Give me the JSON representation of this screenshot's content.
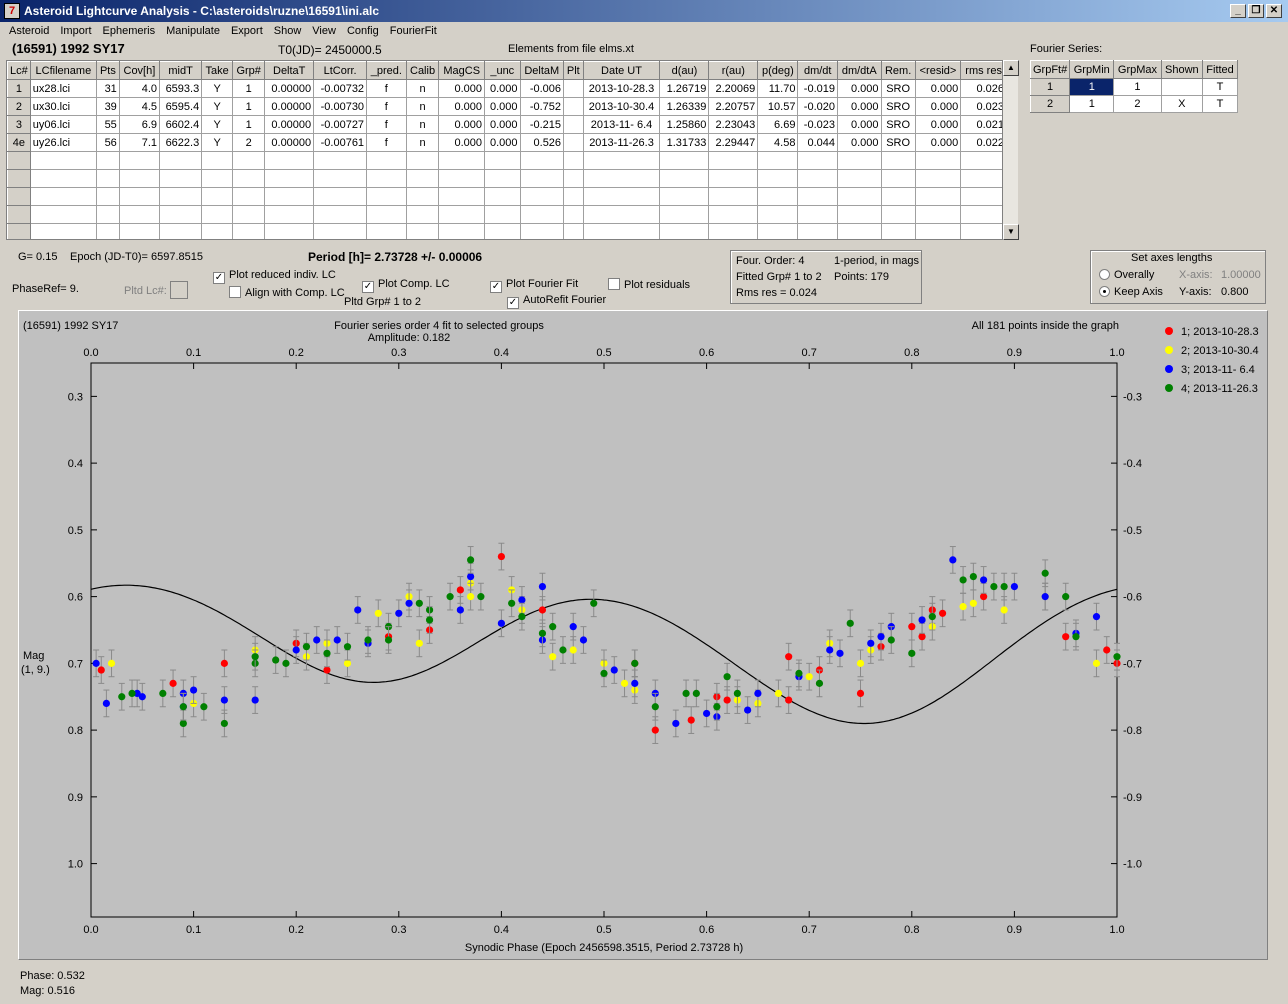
{
  "window": {
    "title": "Asteroid Lightcurve Analysis - C:\\asteroids\\ruzne\\16591\\ini.alc",
    "icon_text": "7"
  },
  "menu": [
    "Asteroid",
    "Import",
    "Ephemeris",
    "Manipulate",
    "Export",
    "Show",
    "View",
    "Config",
    "FourierFit"
  ],
  "header": {
    "asteroid": "(16591) 1992 SY17",
    "t0": "T0(JD)= 2450000.5",
    "elements": "Elements from file elms.xt",
    "fourier_label": "Fourier Series:"
  },
  "lc_table": {
    "columns": [
      "Lc#",
      "LCfilename",
      "Pts",
      "Cov[h]",
      "midT",
      "Take",
      "Grp#",
      "DeltaT",
      "LtCorr.",
      "_pred.",
      "Calib",
      "MagCS",
      "_unc",
      "DeltaM",
      "Plt",
      "Date UT",
      "d(au)",
      "r(au)",
      "p(deg)",
      "dm/dt",
      "dm/dtA",
      "Rem.",
      "<resid>",
      "rms res"
    ],
    "rows": [
      [
        "1",
        "ux28.lci",
        "31",
        "4.0",
        "6593.3",
        "Y",
        "1",
        "0.00000",
        "-0.00732",
        "f",
        "n",
        "0.000",
        "0.000",
        "-0.006",
        "",
        "2013-10-28.3",
        "1.26719",
        "2.20069",
        "11.70",
        "-0.019",
        "0.000",
        "SRO",
        "0.000",
        "0.026"
      ],
      [
        "2",
        "ux30.lci",
        "39",
        "4.5",
        "6595.4",
        "Y",
        "1",
        "0.00000",
        "-0.00730",
        "f",
        "n",
        "0.000",
        "0.000",
        "-0.752",
        "",
        "2013-10-30.4",
        "1.26339",
        "2.20757",
        "10.57",
        "-0.020",
        "0.000",
        "SRO",
        "0.000",
        "0.023"
      ],
      [
        "3",
        "uy06.lci",
        "55",
        "6.9",
        "6602.4",
        "Y",
        "1",
        "0.00000",
        "-0.00727",
        "f",
        "n",
        "0.000",
        "0.000",
        "-0.215",
        "",
        "2013-11- 6.4",
        "1.25860",
        "2.23043",
        "6.69",
        "-0.023",
        "0.000",
        "SRO",
        "0.000",
        "0.021"
      ],
      [
        "4e",
        "uy26.lci",
        "56",
        "7.1",
        "6622.3",
        "Y",
        "2",
        "0.00000",
        "-0.00761",
        "f",
        "n",
        "0.000",
        "0.000",
        "0.526",
        "",
        "2013-11-26.3",
        "1.31733",
        "2.29447",
        "4.58",
        "0.044",
        "0.000",
        "SRO",
        "0.000",
        "0.022"
      ]
    ]
  },
  "fourier_table": {
    "columns": [
      "GrpFt#",
      "GrpMin",
      "GrpMax",
      "Shown",
      "Fitted"
    ],
    "rows": [
      [
        "1",
        "1",
        "1",
        "",
        "T"
      ],
      [
        "2",
        "1",
        "2",
        "X",
        "T"
      ]
    ]
  },
  "controls": {
    "g": "G= 0.15",
    "epoch": "Epoch (JD-T0)= 6597.8515",
    "period": "Period [h]= 2.73728 +/- 0.00006",
    "phaseref": "PhaseRef= 9.",
    "pltd_lc": "Pltd Lc#:",
    "plot_reduced": "Plot reduced indiv. LC",
    "align": "Align with Comp. LC",
    "plot_comp": "Plot Comp. LC",
    "pltd_grp": "Pltd Grp#  1   to   2",
    "plot_fourier": "Plot Fourier Fit",
    "autorefit": "AutoRefit Fourier",
    "plot_resid": "Plot residuals",
    "four_order": "Four. Order:  4",
    "one_period": "1-period, in mags",
    "fitted_grp": "Fitted Grp# 1 to 2",
    "points": "Points: 179",
    "rms": "Rms res     = 0.024",
    "axes_title": "Set axes lengths",
    "overally": "Overally",
    "keep_axis": "Keep Axis",
    "xaxis_label": "X-axis:",
    "xaxis_val": "1.00000",
    "yaxis_label": "Y-axis:",
    "yaxis_val": "0.800"
  },
  "status": {
    "phase": "Phase:  0.532",
    "mag": "Mag:    0.516"
  },
  "chart_data": {
    "type": "scatter",
    "title_left": "(16591) 1992 SY17",
    "title_center": "Fourier series order 4 fit to selected groups",
    "amplitude": "Amplitude: 0.182",
    "title_right": "All 181 points inside the graph",
    "xlabel": "Synodic Phase (Epoch 2456598.3515, Period 2.73728 h)",
    "ylabel": "Mag",
    "ylabel2": "(1, 9.)",
    "xlim": [
      0,
      1.0
    ],
    "ylim": [
      1.08,
      0.25
    ],
    "xticks": [
      "0.0",
      "0.1",
      "0.2",
      "0.3",
      "0.4",
      "0.5",
      "0.6",
      "0.7",
      "0.8",
      "0.9",
      "1.0"
    ],
    "yticks": [
      "0.3",
      "0.4",
      "0.5",
      "0.6",
      "0.7",
      "0.8",
      "0.9",
      "1.0"
    ],
    "yticks_right": [
      "-0.3",
      "-0.4",
      "-0.5",
      "-0.6",
      "-0.7",
      "-0.8",
      "-0.9",
      "-1.0"
    ],
    "colors": {
      "1": "#ff0000",
      "2": "#ffff00",
      "3": "#0000ff",
      "4": "#008000",
      "fit": "#000000",
      "bg": "#c0c0c0"
    },
    "legend": [
      {
        "name": "1; 2013-10-28.3",
        "color": "#ff0000"
      },
      {
        "name": "2; 2013-10-30.4",
        "color": "#ffff00"
      },
      {
        "name": "3; 2013-11- 6.4",
        "color": "#0000ff"
      },
      {
        "name": "4; 2013-11-26.3",
        "color": "#008000"
      }
    ],
    "fit": {
      "mean": 0.675,
      "coef": [
        [
          -0.012,
          -0.035
        ],
        [
          -0.08,
          -0.012
        ],
        [
          0.004,
          -0.002
        ],
        [
          0.002,
          0.002
        ]
      ]
    },
    "series": [
      {
        "name": "1; 2013-10-28.3",
        "color": "#ff0000",
        "points": [
          [
            0.01,
            0.71
          ],
          [
            0.08,
            0.73
          ],
          [
            0.13,
            0.7
          ],
          [
            0.2,
            0.67
          ],
          [
            0.23,
            0.71
          ],
          [
            0.29,
            0.66
          ],
          [
            0.33,
            0.65
          ],
          [
            0.36,
            0.59
          ],
          [
            0.4,
            0.54
          ],
          [
            0.44,
            0.62
          ],
          [
            0.53,
            0.7
          ],
          [
            0.55,
            0.8
          ],
          [
            0.585,
            0.785
          ],
          [
            0.61,
            0.75
          ],
          [
            0.62,
            0.755
          ],
          [
            0.68,
            0.69
          ],
          [
            0.68,
            0.755
          ],
          [
            0.71,
            0.71
          ],
          [
            0.75,
            0.745
          ],
          [
            0.77,
            0.675
          ],
          [
            0.8,
            0.645
          ],
          [
            0.81,
            0.66
          ],
          [
            0.82,
            0.62
          ],
          [
            0.83,
            0.625
          ],
          [
            0.87,
            0.6
          ],
          [
            0.95,
            0.66
          ],
          [
            0.99,
            0.68
          ],
          [
            1.0,
            0.7
          ]
        ]
      },
      {
        "name": "2; 2013-10-30.4",
        "color": "#ffff00",
        "points": [
          [
            0.02,
            0.7
          ],
          [
            0.1,
            0.76
          ],
          [
            0.16,
            0.68
          ],
          [
            0.21,
            0.69
          ],
          [
            0.23,
            0.67
          ],
          [
            0.25,
            0.7
          ],
          [
            0.28,
            0.625
          ],
          [
            0.31,
            0.6
          ],
          [
            0.32,
            0.67
          ],
          [
            0.37,
            0.58
          ],
          [
            0.37,
            0.6
          ],
          [
            0.41,
            0.59
          ],
          [
            0.42,
            0.62
          ],
          [
            0.45,
            0.69
          ],
          [
            0.47,
            0.68
          ],
          [
            0.5,
            0.7
          ],
          [
            0.52,
            0.73
          ],
          [
            0.53,
            0.74
          ],
          [
            0.63,
            0.755
          ],
          [
            0.65,
            0.76
          ],
          [
            0.67,
            0.745
          ],
          [
            0.7,
            0.72
          ],
          [
            0.72,
            0.67
          ],
          [
            0.75,
            0.7
          ],
          [
            0.76,
            0.68
          ],
          [
            0.82,
            0.645
          ],
          [
            0.85,
            0.615
          ],
          [
            0.86,
            0.61
          ],
          [
            0.89,
            0.62
          ],
          [
            0.93,
            0.6
          ],
          [
            0.98,
            0.7
          ]
        ]
      },
      {
        "name": "3; 2013-11- 6.4",
        "color": "#0000ff",
        "points": [
          [
            0.005,
            0.7
          ],
          [
            0.015,
            0.76
          ],
          [
            0.045,
            0.745
          ],
          [
            0.05,
            0.75
          ],
          [
            0.09,
            0.745
          ],
          [
            0.09,
            0.765
          ],
          [
            0.1,
            0.74
          ],
          [
            0.13,
            0.755
          ],
          [
            0.16,
            0.755
          ],
          [
            0.2,
            0.68
          ],
          [
            0.22,
            0.665
          ],
          [
            0.24,
            0.665
          ],
          [
            0.26,
            0.62
          ],
          [
            0.27,
            0.67
          ],
          [
            0.3,
            0.625
          ],
          [
            0.31,
            0.61
          ],
          [
            0.36,
            0.62
          ],
          [
            0.37,
            0.57
          ],
          [
            0.4,
            0.64
          ],
          [
            0.42,
            0.605
          ],
          [
            0.44,
            0.585
          ],
          [
            0.44,
            0.665
          ],
          [
            0.47,
            0.645
          ],
          [
            0.48,
            0.665
          ],
          [
            0.51,
            0.71
          ],
          [
            0.53,
            0.73
          ],
          [
            0.55,
            0.745
          ],
          [
            0.57,
            0.79
          ],
          [
            0.6,
            0.775
          ],
          [
            0.61,
            0.78
          ],
          [
            0.64,
            0.77
          ],
          [
            0.65,
            0.745
          ],
          [
            0.69,
            0.72
          ],
          [
            0.72,
            0.68
          ],
          [
            0.73,
            0.685
          ],
          [
            0.76,
            0.67
          ],
          [
            0.77,
            0.66
          ],
          [
            0.78,
            0.645
          ],
          [
            0.81,
            0.635
          ],
          [
            0.84,
            0.545
          ],
          [
            0.87,
            0.575
          ],
          [
            0.9,
            0.585
          ],
          [
            0.93,
            0.6
          ],
          [
            0.96,
            0.655
          ],
          [
            0.98,
            0.63
          ]
        ]
      },
      {
        "name": "4; 2013-11-26.3",
        "color": "#008000",
        "points": [
          [
            0.03,
            0.75
          ],
          [
            0.04,
            0.745
          ],
          [
            0.07,
            0.745
          ],
          [
            0.09,
            0.79
          ],
          [
            0.09,
            0.765
          ],
          [
            0.11,
            0.765
          ],
          [
            0.13,
            0.79
          ],
          [
            0.16,
            0.7
          ],
          [
            0.16,
            0.69
          ],
          [
            0.18,
            0.695
          ],
          [
            0.19,
            0.7
          ],
          [
            0.21,
            0.675
          ],
          [
            0.23,
            0.685
          ],
          [
            0.25,
            0.675
          ],
          [
            0.27,
            0.665
          ],
          [
            0.29,
            0.645
          ],
          [
            0.29,
            0.665
          ],
          [
            0.32,
            0.61
          ],
          [
            0.33,
            0.62
          ],
          [
            0.33,
            0.635
          ],
          [
            0.35,
            0.6
          ],
          [
            0.37,
            0.545
          ],
          [
            0.38,
            0.6
          ],
          [
            0.41,
            0.61
          ],
          [
            0.42,
            0.63
          ],
          [
            0.44,
            0.655
          ],
          [
            0.45,
            0.645
          ],
          [
            0.46,
            0.68
          ],
          [
            0.49,
            0.61
          ],
          [
            0.5,
            0.715
          ],
          [
            0.53,
            0.7
          ],
          [
            0.55,
            0.765
          ],
          [
            0.58,
            0.745
          ],
          [
            0.59,
            0.745
          ],
          [
            0.61,
            0.765
          ],
          [
            0.62,
            0.72
          ],
          [
            0.63,
            0.745
          ],
          [
            0.69,
            0.715
          ],
          [
            0.71,
            0.73
          ],
          [
            0.74,
            0.64
          ],
          [
            0.78,
            0.665
          ],
          [
            0.8,
            0.685
          ],
          [
            0.82,
            0.63
          ],
          [
            0.85,
            0.575
          ],
          [
            0.86,
            0.57
          ],
          [
            0.88,
            0.585
          ],
          [
            0.89,
            0.585
          ],
          [
            0.93,
            0.565
          ],
          [
            0.95,
            0.6
          ],
          [
            0.96,
            0.66
          ],
          [
            1.0,
            0.69
          ]
        ]
      }
    ]
  }
}
